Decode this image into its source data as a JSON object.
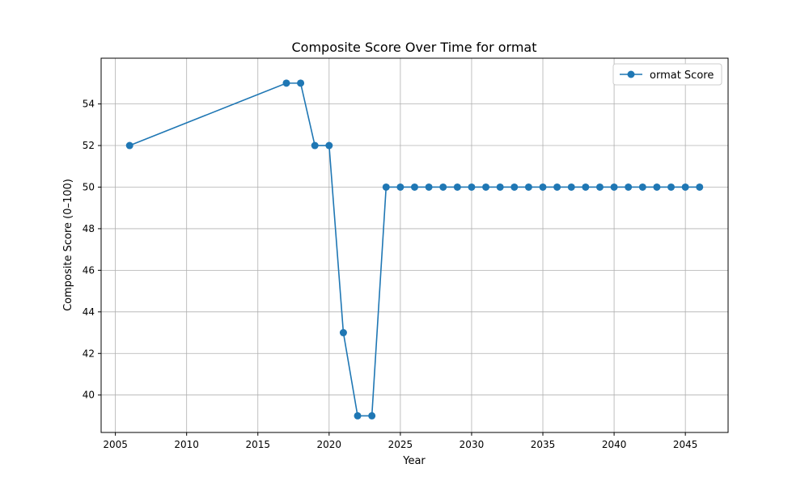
{
  "chart_data": {
    "type": "line",
    "title": "Composite Score Over Time for ormat",
    "xlabel": "Year",
    "ylabel": "Composite Score (0–100)",
    "xlim": [
      2004,
      2048
    ],
    "ylim": [
      38.2,
      56.2
    ],
    "xticks": [
      2005,
      2010,
      2015,
      2020,
      2025,
      2030,
      2035,
      2040,
      2045
    ],
    "yticks": [
      40,
      42,
      44,
      46,
      48,
      50,
      52,
      54
    ],
    "grid": true,
    "legend_position": "top-right",
    "series": [
      {
        "name": "ormat Score",
        "color": "#1f77b4",
        "marker": "circle",
        "x": [
          2006,
          2017,
          2018,
          2019,
          2020,
          2021,
          2022,
          2023,
          2024,
          2025,
          2026,
          2027,
          2028,
          2029,
          2030,
          2031,
          2032,
          2033,
          2034,
          2035,
          2036,
          2037,
          2038,
          2039,
          2040,
          2041,
          2042,
          2043,
          2044,
          2045,
          2046
        ],
        "y": [
          52,
          55,
          55,
          52,
          52,
          43,
          39,
          39,
          50,
          50,
          50,
          50,
          50,
          50,
          50,
          50,
          50,
          50,
          50,
          50,
          50,
          50,
          50,
          50,
          50,
          50,
          50,
          50,
          50,
          50,
          50
        ]
      }
    ]
  }
}
